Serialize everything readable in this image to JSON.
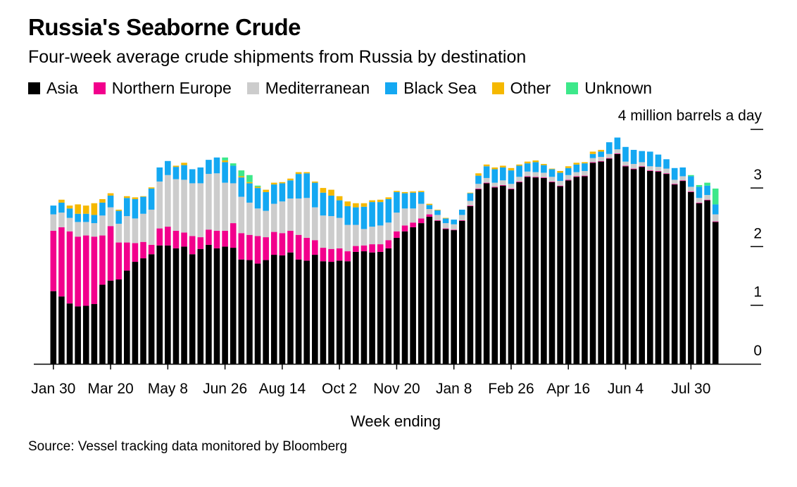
{
  "chart_data": {
    "type": "bar",
    "stacked": true,
    "title": "Russia's Seaborne Crude",
    "subtitle": "Four-week average crude shipments from Russia by destination",
    "xlabel": "Week ending",
    "ylabel": "4 million barrels a day",
    "source": "Source: Vessel tracking data monitored by Bloomberg",
    "ylim": [
      0,
      4
    ],
    "yticks": [
      0,
      1,
      2,
      3
    ],
    "y_top_label": "4 million barrels a day",
    "grid": false,
    "legend_position": "top-left",
    "x_tick_labels": [
      {
        "label": "Jan 30",
        "index": 0
      },
      {
        "label": "Mar 20",
        "index": 7
      },
      {
        "label": "May 8",
        "index": 14
      },
      {
        "label": "Jun 26",
        "index": 21
      },
      {
        "label": "Aug 14",
        "index": 28
      },
      {
        "label": "Oct 2",
        "index": 35
      },
      {
        "label": "Nov 20",
        "index": 42
      },
      {
        "label": "Jan 8",
        "index": 49
      },
      {
        "label": "Feb 26",
        "index": 56
      },
      {
        "label": "Apr 16",
        "index": 63
      },
      {
        "label": "Jun 4",
        "index": 70
      },
      {
        "label": "Jul 30",
        "index": 78
      }
    ],
    "series": [
      {
        "name": "Asia",
        "color": "#000000",
        "values": [
          1.24,
          1.15,
          1.03,
          0.98,
          0.99,
          1.02,
          1.35,
          1.42,
          1.44,
          1.59,
          1.74,
          1.8,
          1.87,
          2.02,
          2.02,
          1.97,
          2.0,
          1.87,
          1.96,
          2.03,
          1.97,
          2.0,
          1.98,
          1.78,
          1.77,
          1.71,
          1.77,
          1.86,
          1.85,
          1.9,
          1.78,
          1.76,
          1.86,
          1.75,
          1.74,
          1.76,
          1.75,
          1.91,
          1.92,
          1.9,
          1.91,
          1.97,
          2.15,
          2.26,
          2.33,
          2.4,
          2.51,
          2.44,
          2.3,
          2.28,
          2.44,
          2.69,
          2.98,
          3.08,
          3.01,
          3.04,
          2.98,
          3.1,
          3.19,
          3.18,
          3.17,
          3.1,
          3.03,
          3.13,
          3.19,
          3.2,
          3.43,
          3.45,
          3.5,
          3.58,
          3.37,
          3.32,
          3.36,
          3.29,
          3.28,
          3.24,
          3.06,
          3.12,
          2.93,
          2.74,
          2.79,
          2.42
        ]
      },
      {
        "name": "Northern Europe",
        "color": "#f2008c",
        "values": [
          1.03,
          1.18,
          1.23,
          1.19,
          1.2,
          1.15,
          0.84,
          0.93,
          0.63,
          0.48,
          0.32,
          0.28,
          0.16,
          0.29,
          0.32,
          0.3,
          0.24,
          0.31,
          0.2,
          0.26,
          0.3,
          0.27,
          0.42,
          0.45,
          0.43,
          0.47,
          0.39,
          0.39,
          0.38,
          0.37,
          0.42,
          0.39,
          0.25,
          0.23,
          0.22,
          0.21,
          0.17,
          0.1,
          0.1,
          0.14,
          0.13,
          0.14,
          0.11,
          0.1,
          0.08,
          0.08,
          0.04,
          0.01,
          0.01,
          0.01,
          0.01,
          0.01,
          0.01,
          0.01,
          0.01,
          0.01,
          0.01,
          0.01,
          0.01,
          0.01,
          0.01,
          0.01,
          0.01,
          0.01,
          0.01,
          0.01,
          0.01,
          0.01,
          0.01,
          0.01,
          0.01,
          0.01,
          0.01,
          0.01,
          0.01,
          0.01,
          0.01,
          0.01,
          0.01,
          0.01,
          0.01,
          0.01
        ]
      },
      {
        "name": "Mediterranean",
        "color": "#cccccc",
        "values": [
          0.28,
          0.25,
          0.23,
          0.25,
          0.23,
          0.23,
          0.34,
          0.32,
          0.32,
          0.45,
          0.42,
          0.48,
          0.6,
          0.8,
          0.88,
          0.88,
          0.9,
          0.9,
          0.92,
          0.95,
          0.98,
          0.82,
          0.68,
          0.62,
          0.55,
          0.47,
          0.45,
          0.48,
          0.54,
          0.55,
          0.62,
          0.68,
          0.56,
          0.55,
          0.56,
          0.52,
          0.45,
          0.36,
          0.28,
          0.3,
          0.32,
          0.3,
          0.32,
          0.29,
          0.24,
          0.25,
          0.09,
          0.09,
          0.09,
          0.09,
          0.09,
          0.08,
          0.08,
          0.08,
          0.07,
          0.08,
          0.08,
          0.08,
          0.08,
          0.08,
          0.08,
          0.08,
          0.08,
          0.08,
          0.07,
          0.08,
          0.07,
          0.07,
          0.07,
          0.07,
          0.07,
          0.08,
          0.07,
          0.07,
          0.07,
          0.08,
          0.07,
          0.07,
          0.08,
          0.08,
          0.08,
          0.12
        ]
      },
      {
        "name": "Black Sea",
        "color": "#14a8f2",
        "values": [
          0.15,
          0.17,
          0.16,
          0.14,
          0.14,
          0.14,
          0.22,
          0.2,
          0.22,
          0.31,
          0.33,
          0.29,
          0.36,
          0.24,
          0.24,
          0.21,
          0.25,
          0.24,
          0.27,
          0.24,
          0.27,
          0.35,
          0.3,
          0.33,
          0.33,
          0.35,
          0.32,
          0.33,
          0.31,
          0.31,
          0.42,
          0.42,
          0.42,
          0.39,
          0.35,
          0.3,
          0.32,
          0.3,
          0.38,
          0.42,
          0.4,
          0.4,
          0.35,
          0.26,
          0.27,
          0.2,
          0.07,
          0.08,
          0.08,
          0.08,
          0.09,
          0.13,
          0.14,
          0.2,
          0.23,
          0.22,
          0.23,
          0.19,
          0.14,
          0.17,
          0.13,
          0.13,
          0.14,
          0.12,
          0.13,
          0.13,
          0.07,
          0.09,
          0.2,
          0.2,
          0.25,
          0.24,
          0.19,
          0.25,
          0.21,
          0.16,
          0.2,
          0.15,
          0.18,
          0.19,
          0.16,
          0.17
        ]
      },
      {
        "name": "Other",
        "color": "#f5b800",
        "values": [
          0.0,
          0.05,
          0.05,
          0.16,
          0.14,
          0.2,
          0.06,
          0.04,
          0.02,
          0.03,
          0.03,
          0.01,
          0.02,
          0.0,
          0.0,
          0.02,
          0.04,
          0.0,
          0.0,
          0.0,
          0.0,
          0.03,
          0.0,
          0.02,
          0.02,
          0.02,
          0.04,
          0.03,
          0.02,
          0.03,
          0.03,
          0.02,
          0.02,
          0.08,
          0.1,
          0.07,
          0.08,
          0.07,
          0.06,
          0.03,
          0.04,
          0.03,
          0.02,
          0.02,
          0.02,
          0.02,
          0.02,
          0.01,
          0.01,
          0.0,
          0.0,
          0.01,
          0.04,
          0.03,
          0.03,
          0.03,
          0.04,
          0.02,
          0.03,
          0.03,
          0.02,
          0.01,
          0.03,
          0.03,
          0.03,
          0.02,
          0.04,
          0.03,
          0.0,
          0.0,
          0.0,
          0.0,
          0.0,
          0.0,
          0.0,
          0.0,
          0.0,
          0.0,
          0.0,
          0.0,
          0.0,
          0.0
        ]
      },
      {
        "name": "Unknown",
        "color": "#3de88a",
        "values": [
          0.0,
          0.0,
          0.0,
          0.0,
          0.0,
          0.0,
          0.0,
          0.0,
          0.0,
          0.0,
          0.0,
          0.0,
          0.0,
          0.0,
          0.0,
          0.0,
          0.0,
          0.0,
          0.0,
          0.0,
          0.0,
          0.05,
          0.04,
          0.1,
          0.12,
          0.02,
          0.0,
          0.0,
          0.0,
          0.0,
          0.0,
          0.0,
          0.0,
          0.0,
          0.0,
          0.0,
          0.0,
          0.0,
          0.0,
          0.0,
          0.0,
          0.0,
          0.0,
          0.0,
          0.0,
          0.0,
          0.0,
          0.0,
          0.0,
          0.0,
          0.0,
          0.0,
          0.0,
          0.0,
          0.0,
          0.0,
          0.0,
          0.0,
          0.0,
          0.0,
          0.0,
          0.0,
          0.0,
          0.0,
          0.0,
          0.0,
          0.0,
          0.0,
          0.0,
          0.0,
          0.0,
          0.0,
          0.0,
          0.0,
          0.0,
          0.0,
          0.0,
          0.0,
          0.02,
          0.03,
          0.05,
          0.27
        ]
      }
    ]
  }
}
